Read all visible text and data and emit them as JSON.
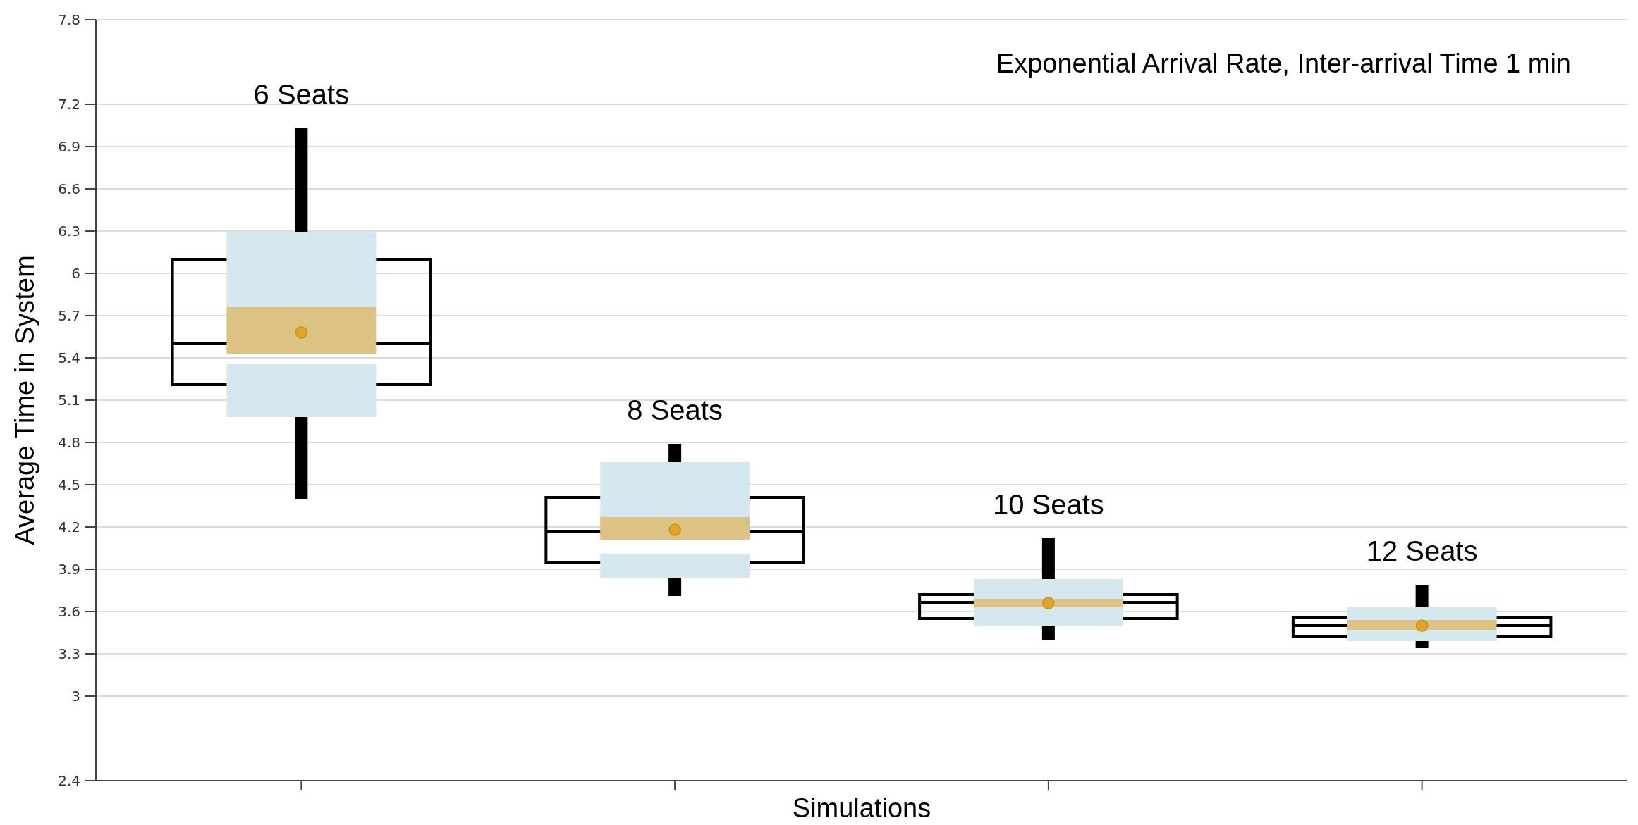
{
  "chart_data": {
    "type": "box",
    "title": "Exponential Arrival Rate, Inter-arrival Time 1 min",
    "xlabel": "Simulations",
    "ylabel": "Average Time in System",
    "categories": [
      "6 Seats",
      "8 Seats",
      "10 Seats",
      "12 Seats"
    ],
    "ylim": [
      2.4,
      7.8
    ],
    "yticks": [
      2.4,
      3,
      3.3,
      3.6,
      3.9,
      4.2,
      4.5,
      4.8,
      5.1,
      5.4,
      5.7,
      6,
      6.3,
      6.6,
      6.9,
      7.2,
      7.8
    ],
    "grid": "y",
    "series": [
      {
        "color": "#000000",
        "boxes": [
          {
            "low": 4.4,
            "q1": 5.21,
            "median": 5.5,
            "q3": 6.1,
            "high": 7.03
          },
          {
            "low": 3.71,
            "q1": 3.95,
            "median": 4.17,
            "q3": 4.41,
            "high": 4.79
          },
          {
            "low": 3.4,
            "q1": 3.55,
            "median": 3.665,
            "q3": 3.72,
            "high": 4.12
          },
          {
            "low": 3.34,
            "q1": 3.42,
            "median": 3.5,
            "q3": 3.56,
            "high": 3.79
          }
        ]
      },
      {
        "type": "bar",
        "color": "#d5e8ef",
        "base": [
          5.76,
          4.27,
          3.69,
          3.54
        ],
        "values": [
          0.53,
          0.39,
          0.14,
          0.09
        ]
      },
      {
        "type": "bar",
        "color": "#dcc384",
        "base": [
          5.43,
          4.11,
          3.63,
          3.47
        ],
        "values": [
          0.33,
          0.16,
          0.06,
          0.07
        ]
      },
      {
        "type": "bar",
        "color": "#d5e8ef",
        "base": [
          4.98,
          3.84,
          3.5,
          3.39
        ],
        "values": [
          0.38,
          0.17,
          0.13,
          0.08
        ]
      },
      {
        "type": "scatter",
        "color": "#e0a526",
        "x": [
          "6 Seats",
          "8 Seats",
          "10 Seats",
          "12 Seats"
        ],
        "values": [
          5.58,
          4.18,
          3.66,
          3.5
        ]
      }
    ]
  }
}
